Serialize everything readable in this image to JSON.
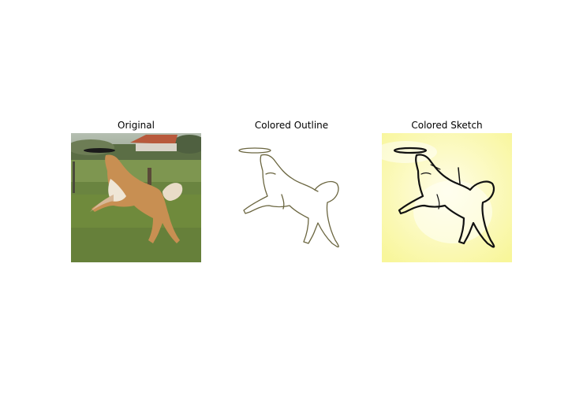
{
  "panels": [
    {
      "title": "Original",
      "image": "dog-catching-frisbee-photo"
    },
    {
      "title": "Colored Outline",
      "image": "dog-catching-frisbee-outline"
    },
    {
      "title": "Colored Sketch",
      "image": "dog-catching-frisbee-sketch"
    }
  ],
  "colors": {
    "grass": "#6f8a3c",
    "sky": "#b9c4b4",
    "dog_fur": "#c88f52",
    "outline_stroke": "#6b6640",
    "sketch_background": "#fbf9b0",
    "sketch_stroke": "#111111"
  }
}
